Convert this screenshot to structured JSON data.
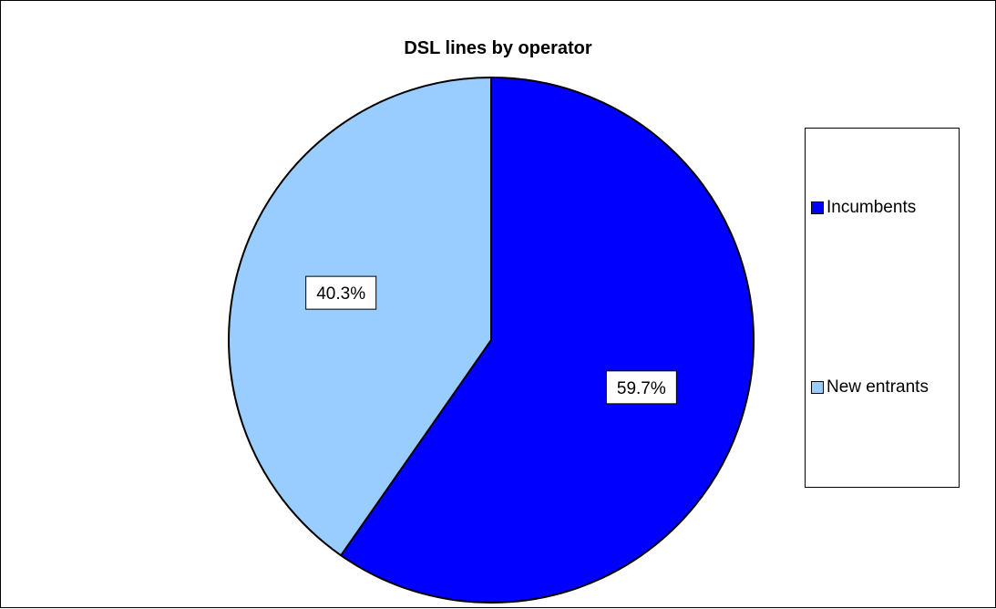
{
  "chart_data": {
    "type": "pie",
    "title": "DSL lines by operator",
    "categories": [
      "Incumbents",
      "New entrants"
    ],
    "values": [
      59.7,
      40.3
    ],
    "data_labels": [
      "59.7%",
      "40.3%"
    ],
    "colors": [
      "#0000FF",
      "#99CCFF"
    ],
    "start_angle_deg": 0,
    "direction": "clockwise",
    "legend_position": "right"
  }
}
